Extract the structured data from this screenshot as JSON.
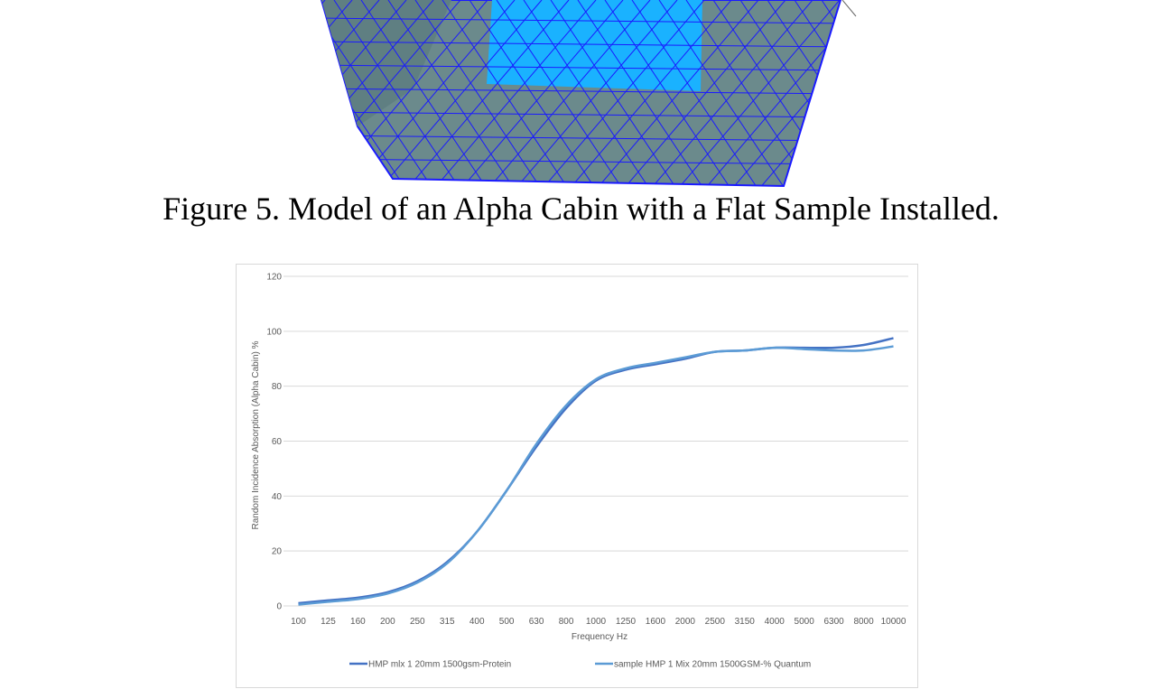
{
  "figure_caption": "Figure 5. Model of an Alpha Cabin with a Flat Sample Installed.",
  "colors": {
    "mesh_body": "#6b8a8c",
    "mesh_lines": "#1a1aff",
    "sample_panel": "#1ab2ff",
    "series_1": "#4472c4",
    "series_2": "#5b9bd5",
    "gridline": "#d9d9d9",
    "axis_text": "#595959"
  },
  "chart_data": {
    "type": "line",
    "title": "",
    "xlabel": "Frequency Hz",
    "ylabel": "Random Incidence Absorption (Alpha Cabin) %",
    "categories": [
      "100",
      "125",
      "160",
      "200",
      "250",
      "315",
      "400",
      "500",
      "630",
      "800",
      "1000",
      "1250",
      "1600",
      "2000",
      "2500",
      "3150",
      "4000",
      "5000",
      "6300",
      "8000",
      "10000"
    ],
    "ylim": [
      0,
      120
    ],
    "yticks": [
      0,
      20,
      40,
      60,
      80,
      100,
      120
    ],
    "grid": true,
    "legend_position": "bottom",
    "series": [
      {
        "name": "HMP mlx 1 20mm 1500gsm-Protein",
        "values": [
          1,
          2,
          3,
          5,
          9,
          16,
          27,
          42,
          58,
          72,
          82,
          86,
          88,
          90,
          92.5,
          93,
          94,
          94,
          94,
          95,
          97.5
        ]
      },
      {
        "name": "sample HMP 1 Mix 20mm 1500GSM-% Quantum",
        "values": [
          0.5,
          1.5,
          2.5,
          4.5,
          8.5,
          15.5,
          27,
          42,
          59,
          73,
          82.5,
          86.5,
          88.5,
          90.5,
          92.5,
          93,
          94,
          93.5,
          93,
          93,
          94.5
        ]
      }
    ]
  }
}
